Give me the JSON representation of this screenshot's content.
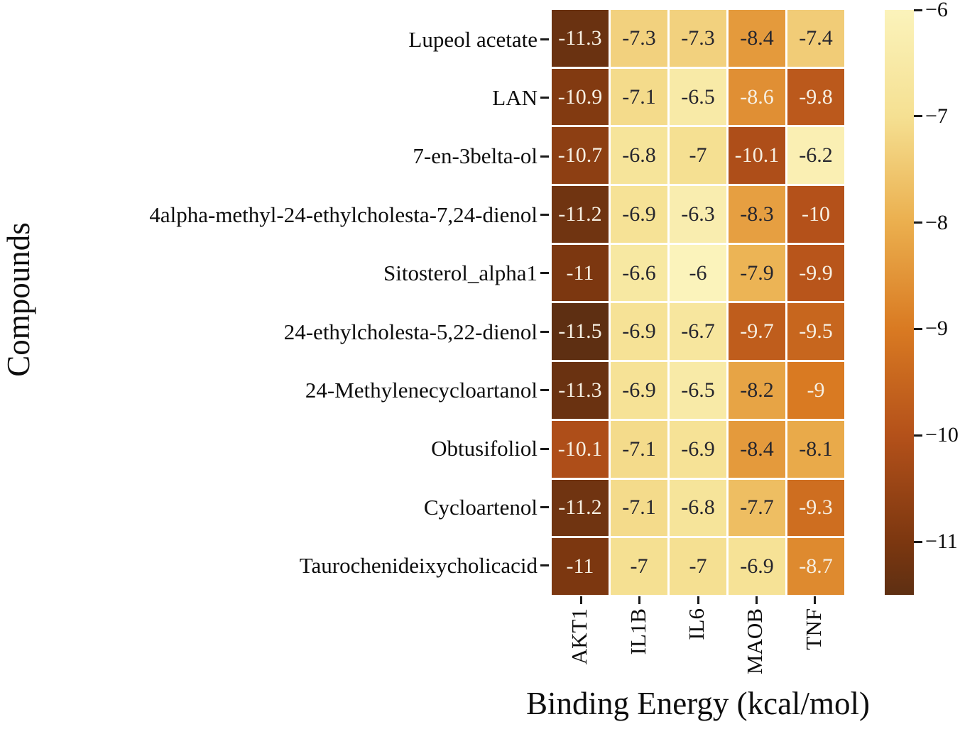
{
  "chart_data": {
    "type": "heatmap",
    "xlabel": "Binding Energy (kcal/mol)",
    "ylabel": "Compounds",
    "columns": [
      "AKT1",
      "IL1B",
      "IL6",
      "MAOB",
      "TNF"
    ],
    "rows": [
      "Lupeol acetate",
      "LAN",
      "7-en-3belta-ol",
      "4alpha-methyl-24-ethylcholesta-7,24-dienol",
      "Sitosterol_alpha1",
      "24-ethylcholesta-5,22-dienol",
      "24-Methylenecycloartanol",
      "Obtusifoliol",
      "Cycloartenol",
      "Taurochenideixycholicacid"
    ],
    "values": [
      [
        -11.3,
        -7.3,
        -7.3,
        -8.4,
        -7.4
      ],
      [
        -10.9,
        -7.1,
        -6.5,
        -8.6,
        -9.8
      ],
      [
        -10.7,
        -6.8,
        -7,
        -10.1,
        -6.2
      ],
      [
        -11.2,
        -6.9,
        -6.3,
        -8.3,
        -10
      ],
      [
        -11,
        -6.6,
        -6,
        -7.9,
        -9.9
      ],
      [
        -11.5,
        -6.9,
        -6.7,
        -9.7,
        -9.5
      ],
      [
        -11.3,
        -6.9,
        -6.5,
        -8.2,
        -9
      ],
      [
        -10.1,
        -7.1,
        -6.9,
        -8.4,
        -8.1
      ],
      [
        -11.2,
        -7.1,
        -6.8,
        -7.7,
        -9.3
      ],
      [
        -11,
        -7,
        -7,
        -6.9,
        -8.7
      ]
    ],
    "annotated": true,
    "vmin": -11.5,
    "vmax": -6,
    "colormap": {
      "name": "YlOrBr-like",
      "anchors": [
        {
          "value": -6,
          "color": "#FBF3BB"
        },
        {
          "value": -7,
          "color": "#F5E092"
        },
        {
          "value": -8,
          "color": "#EBAF4E"
        },
        {
          "value": -9,
          "color": "#D97A22"
        },
        {
          "value": -10,
          "color": "#B4511A"
        },
        {
          "value": -11,
          "color": "#7C3710"
        },
        {
          "value": -11.5,
          "color": "#5E2F12"
        }
      ]
    },
    "cell_text_colors": {
      "light": "#F6EFE2",
      "dark": "#26262E",
      "luminance_threshold": 0.61
    },
    "grid_line_color": "#FFFFFF",
    "colorbar": {
      "position": "right",
      "ticks": [
        -6,
        -7,
        -8,
        -9,
        -10,
        -11
      ],
      "tick_labels": [
        "−6",
        "−7",
        "−8",
        "−9",
        "−10",
        "−11"
      ]
    }
  }
}
